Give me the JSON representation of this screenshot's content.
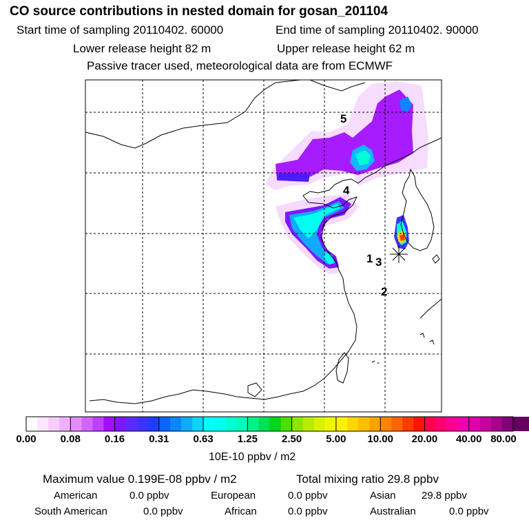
{
  "header": {
    "title": "CO  source contributions in nested domain for gosan_201104",
    "start": "Start time of sampling 20110402. 60000",
    "end": "End time of sampling 20110402. 90000",
    "lower": "Lower release height   82 m",
    "upper": "Upper release height   62 m",
    "tracer": "Passive tracer used, meteorological data are from ECMWF"
  },
  "chart_data": {
    "type": "heatmap",
    "title": "CO  source contributions in nested domain for gosan_201104",
    "legend_unit": "10E-10 ppbv / m2",
    "legend_ticks": [
      "0.00",
      "0.08",
      "0.16",
      "0.31",
      "0.63",
      "1.25",
      "2.50",
      "5.00",
      "10.00",
      "20.00",
      "40.00",
      "80.00"
    ],
    "legend_colors": [
      [
        "#ffffff",
        "#fde6ff",
        "#f8ccff",
        "#f0b0ff"
      ],
      [
        "#e48cff",
        "#d266ff",
        "#bd3fff",
        "#a20eff"
      ],
      [
        "#7b18ff",
        "#5c2bff",
        "#3d33ff",
        "#1f3cff"
      ],
      [
        "#0a64ff",
        "#0a87ff",
        "#10aaff",
        "#10d0ff"
      ],
      [
        "#00ffff",
        "#00ffee",
        "#00ffd5",
        "#00ffbb"
      ],
      [
        "#00f089",
        "#00e055",
        "#00d61c",
        "#48e000"
      ],
      [
        "#8ee600",
        "#b8ec00",
        "#d8f200",
        "#eef700"
      ],
      [
        "#fff200",
        "#ffd800",
        "#ffbd00",
        "#ffa200"
      ],
      [
        "#ff8400",
        "#ff6300",
        "#ff3b00",
        "#ff1400"
      ],
      [
        "#ff0050",
        "#ff0074",
        "#fb0094",
        "#f000ac"
      ],
      [
        "#e000aa",
        "#c8009e",
        "#a6008c",
        "#820076"
      ],
      [
        "#660060",
        "#4e004a"
      ]
    ],
    "site_labels": [
      "1",
      "2",
      "3",
      "4",
      "5"
    ],
    "max_value": "0.199E-08",
    "total_mixing_ratio": 29.8,
    "units": "ppbv"
  },
  "stats": {
    "max_label": "Maximum value  0.199E-08 ppbv / m2",
    "total_label": "Total mixing ratio       29.8 ppbv",
    "american_label": "American",
    "american_value": "0.0 ppbv",
    "european_label": "European",
    "european_value": "0.0 ppbv",
    "asian_label": "Asian",
    "asian_value": "29.8 ppbv",
    "south_american_label": "South American",
    "south_american_value": "0.0 ppbv",
    "african_label": "African",
    "african_value": "0.0 ppbv",
    "australian_label": "Australian",
    "australian_value": "0.0 ppbv"
  }
}
